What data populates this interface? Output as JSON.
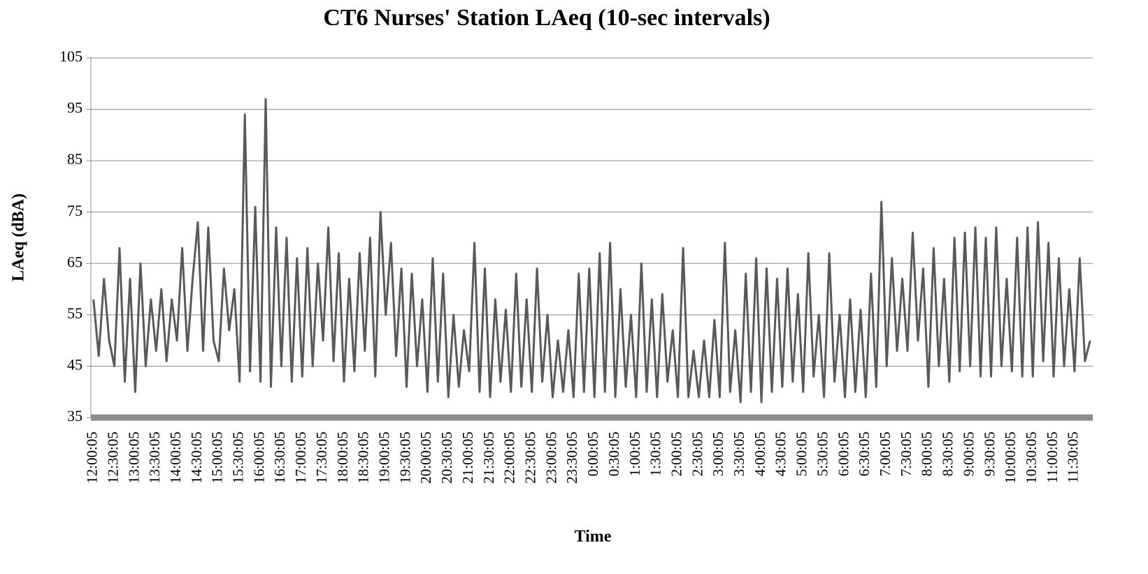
{
  "chart_data": {
    "type": "line",
    "title": "CT6 Nurses' Station LAeq (10-sec intervals)",
    "x_label": "Time",
    "y_label": "LAeq (dBA)",
    "categories": [
      "12:00:05",
      null,
      null,
      null,
      "12:30:05",
      null,
      null,
      null,
      "13:00:05",
      null,
      null,
      null,
      "13:30:05",
      null,
      null,
      null,
      "14:00:05",
      null,
      null,
      null,
      "14:30:05",
      null,
      null,
      null,
      "15:00:05",
      null,
      null,
      null,
      "15:30:05",
      null,
      null,
      null,
      "16:00:05",
      null,
      null,
      null,
      "16:30:05",
      null,
      null,
      null,
      "17:00:05",
      null,
      null,
      null,
      "17:30:05",
      null,
      null,
      null,
      "18:00:05",
      null,
      null,
      null,
      "18:30:05",
      null,
      null,
      null,
      "19:00:05",
      null,
      null,
      null,
      "19:30:05",
      null,
      null,
      null,
      "20:00:05",
      null,
      null,
      null,
      "20:30:05",
      null,
      null,
      null,
      "21:00:05",
      null,
      null,
      null,
      "21:30:05",
      null,
      null,
      null,
      "22:00:05",
      null,
      null,
      null,
      "22:30:05",
      null,
      null,
      null,
      "23:00:05",
      null,
      null,
      null,
      "23:30:05",
      null,
      null,
      null,
      "0:00:05",
      null,
      null,
      null,
      "0:30:05",
      null,
      null,
      null,
      "1:00:05",
      null,
      null,
      null,
      "1:30:05",
      null,
      null,
      null,
      "2:00:05",
      null,
      null,
      null,
      "2:30:05",
      null,
      null,
      null,
      "3:00:05",
      null,
      null,
      null,
      "3:30:05",
      null,
      null,
      null,
      "4:00:05",
      null,
      null,
      null,
      "4:30:05",
      null,
      null,
      null,
      "5:00:05",
      null,
      null,
      null,
      "5:30:05",
      null,
      null,
      null,
      "6:00:05",
      null,
      null,
      null,
      "6:30:05",
      null,
      null,
      null,
      "7:00:05",
      null,
      null,
      null,
      "7:30:05",
      null,
      null,
      null,
      "8:00:05",
      null,
      null,
      null,
      "8:30:05",
      null,
      null,
      null,
      "9:00:05",
      null,
      null,
      null,
      "9:30:05",
      null,
      null,
      null,
      "10:00:05",
      null,
      null,
      null,
      "10:30:05",
      null,
      null,
      null,
      "11:00:05",
      null,
      null,
      null,
      "11:30:05",
      null,
      null,
      null
    ],
    "values": [
      58,
      47,
      62,
      50,
      45,
      68,
      42,
      62,
      40,
      65,
      45,
      58,
      48,
      60,
      46,
      58,
      50,
      68,
      48,
      62,
      73,
      48,
      72,
      50,
      46,
      64,
      52,
      60,
      42,
      94,
      44,
      76,
      42,
      97,
      41,
      72,
      45,
      70,
      42,
      66,
      43,
      68,
      45,
      65,
      50,
      72,
      46,
      67,
      42,
      62,
      44,
      67,
      48,
      70,
      43,
      75,
      55,
      69,
      47,
      64,
      41,
      63,
      45,
      58,
      40,
      66,
      42,
      63,
      39,
      55,
      41,
      52,
      44,
      69,
      40,
      64,
      39,
      58,
      42,
      56,
      40,
      63,
      41,
      58,
      40,
      64,
      42,
      55,
      39,
      50,
      40,
      52,
      39,
      63,
      40,
      64,
      39,
      67,
      40,
      69,
      39,
      60,
      41,
      55,
      39,
      65,
      40,
      58,
      39,
      59,
      42,
      52,
      39,
      68,
      39,
      48,
      39,
      50,
      39,
      54,
      39,
      69,
      40,
      52,
      38,
      63,
      40,
      66,
      38,
      64,
      40,
      62,
      41,
      64,
      42,
      59,
      40,
      67,
      43,
      55,
      39,
      67,
      42,
      55,
      39,
      58,
      40,
      56,
      39,
      63,
      41,
      77,
      45,
      66,
      48,
      62,
      48,
      71,
      50,
      64,
      41,
      68,
      45,
      62,
      42,
      70,
      44,
      71,
      45,
      72,
      43,
      70,
      43,
      72,
      45,
      62,
      44,
      70,
      43,
      72,
      43,
      73,
      46,
      69,
      43,
      66,
      45,
      60,
      44,
      66,
      46,
      50
    ],
    "color": "#595959",
    "ylim": [
      35,
      105
    ],
    "yticks": [
      35,
      45,
      55,
      65,
      75,
      85,
      95,
      105
    ],
    "grid": true
  }
}
